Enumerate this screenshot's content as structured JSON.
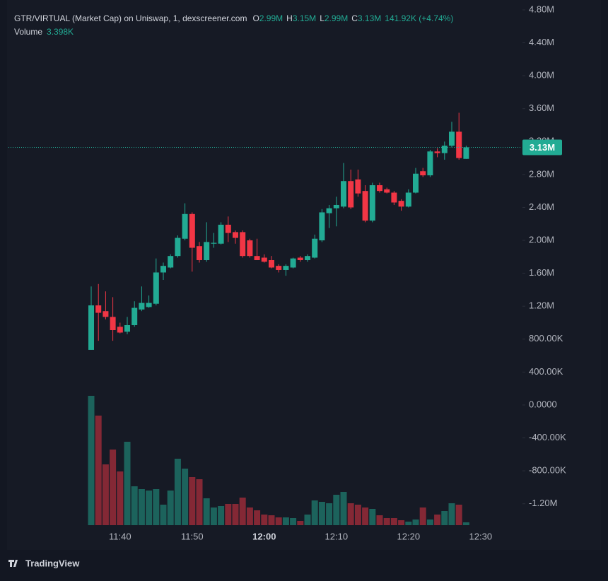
{
  "chart_data": {
    "type": "candlestick",
    "title": "GTR/VIRTUAL (Market Cap) on Uniswap, 1, dexscreener.com",
    "header_values": [
      {
        "key": "O",
        "text": "2.99M"
      },
      {
        "key": "H",
        "text": "3.15M"
      },
      {
        "key": "L",
        "text": "2.99M"
      },
      {
        "key": "C",
        "text": "3.13M"
      }
    ],
    "change": "141.92K (+4.74%)",
    "up_color": "#22ab94",
    "down_color": "#f23645",
    "categories": [
      null,
      null,
      null,
      null,
      "11:40",
      null,
      null,
      null,
      null,
      null,
      null,
      null,
      null,
      null,
      "11:50",
      null,
      null,
      null,
      null,
      null,
      null,
      null,
      null,
      null,
      "12:00",
      null,
      null,
      null,
      null,
      null,
      null,
      null,
      null,
      null,
      "12:10",
      null,
      null,
      null,
      null,
      null,
      null,
      null,
      null,
      null,
      "12:20",
      null,
      null,
      null,
      null,
      null,
      null,
      null,
      null,
      null,
      "12:30"
    ],
    "open": [
      670000,
      1210000,
      1140000,
      1070000,
      950000,
      890000,
      970000,
      1160000,
      1190000,
      1230000,
      1610000,
      1670000,
      1810000,
      2020000,
      2320000,
      1930000,
      1760000,
      1960000,
      1960000,
      2190000,
      2100000,
      2100000,
      2000000,
      1810000,
      1790000,
      1760000,
      1690000,
      1640000,
      1670000,
      1790000,
      1760000,
      1790000,
      2000000,
      2330000,
      2390000,
      2410000,
      2720000,
      2740000,
      2600000,
      2240000,
      2670000,
      2620000,
      2580000,
      2480000,
      2410000,
      2580000,
      2840000,
      2790000,
      3080000,
      3060000,
      3150000,
      3320000,
      2990000,
      null,
      null
    ],
    "high": [
      1440000,
      1470000,
      1380000,
      1310000,
      1000000,
      1070000,
      1260000,
      1440000,
      1330000,
      1780000,
      1730000,
      1830000,
      2060000,
      2450000,
      2340000,
      1980000,
      2220000,
      2090000,
      2220000,
      2290000,
      2120000,
      2120000,
      2020000,
      2020000,
      1830000,
      1810000,
      1710000,
      1710000,
      1790000,
      1810000,
      1830000,
      2070000,
      2380000,
      2430000,
      2530000,
      2940000,
      2860000,
      2860000,
      2670000,
      2700000,
      2700000,
      2640000,
      2600000,
      2500000,
      2620000,
      2880000,
      2880000,
      3100000,
      3120000,
      3200000,
      3440000,
      3550000,
      3150000,
      null,
      null
    ],
    "low": [
      670000,
      780000,
      1040000,
      780000,
      870000,
      860000,
      950000,
      1140000,
      1180000,
      1210000,
      1520000,
      1660000,
      1790000,
      2000000,
      1620000,
      1730000,
      1740000,
      1910000,
      1950000,
      1980000,
      1960000,
      1790000,
      1790000,
      1760000,
      1730000,
      1660000,
      1610000,
      1570000,
      1660000,
      1740000,
      1740000,
      1780000,
      1980000,
      2150000,
      2170000,
      2390000,
      2380000,
      2530000,
      2220000,
      2220000,
      2580000,
      2570000,
      2430000,
      2360000,
      2400000,
      2570000,
      2770000,
      2770000,
      3010000,
      2980000,
      3130000,
      2980000,
      2990000,
      null,
      null
    ],
    "close": [
      1210000,
      1120000,
      1070000,
      910000,
      880000,
      970000,
      1180000,
      1240000,
      1240000,
      1610000,
      1690000,
      1810000,
      2030000,
      2320000,
      1910000,
      1760000,
      1980000,
      1970000,
      2190000,
      2090000,
      2030000,
      1810000,
      1810000,
      1760000,
      1740000,
      1670000,
      1640000,
      1690000,
      1780000,
      1760000,
      1810000,
      2020000,
      2340000,
      2390000,
      2430000,
      2720000,
      2400000,
      2570000,
      2240000,
      2670000,
      2600000,
      2580000,
      2460000,
      2410000,
      2580000,
      2810000,
      2790000,
      3080000,
      3060000,
      3150000,
      3320000,
      3000000,
      3130000,
      null,
      null
    ],
    "volume": {
      "name": "Volume",
      "last_label": "3.398K",
      "values": [
        155550,
        131750,
        73100,
        90950,
        64600,
        100300,
        46750,
        43350,
        41650,
        43350,
        24650,
        41650,
        79900,
        68000,
        57800,
        55250,
        32300,
        21250,
        22950,
        25500,
        25500,
        33150,
        21250,
        17850,
        12750,
        11900,
        9350,
        9350,
        8500,
        5100,
        12750,
        29750,
        28050,
        26350,
        36550,
        39950,
        26350,
        24650,
        21250,
        19550,
        11900,
        8500,
        8500,
        5950,
        4250,
        6800,
        21250,
        6800,
        12750,
        17000,
        26350,
        24650,
        3398,
        null,
        null
      ]
    },
    "last_price": {
      "value": 3130000,
      "label": "3.13M"
    },
    "ylim": [
      -1460000,
      4920000
    ],
    "yticks": [
      {
        "value": 4800000,
        "label": "4.80M"
      },
      {
        "value": 4400000,
        "label": "4.40M"
      },
      {
        "value": 4000000,
        "label": "4.00M"
      },
      {
        "value": 3600000,
        "label": "3.60M"
      },
      {
        "value": 3200000,
        "label": "3.20M"
      },
      {
        "value": 2800000,
        "label": "2.80M"
      },
      {
        "value": 2400000,
        "label": "2.40M"
      },
      {
        "value": 2000000,
        "label": "2.00M"
      },
      {
        "value": 1600000,
        "label": "1.60M"
      },
      {
        "value": 1200000,
        "label": "1.20M"
      },
      {
        "value": 800000,
        "label": "800.00K"
      },
      {
        "value": 400000,
        "label": "400.00K"
      },
      {
        "value": 0,
        "label": "0.0000"
      },
      {
        "value": -400000,
        "label": "-400.00K"
      },
      {
        "value": -800000,
        "label": "-800.00K"
      },
      {
        "value": -1200000,
        "label": "-1.20M"
      }
    ],
    "grid": false
  },
  "brand": "TradingView"
}
